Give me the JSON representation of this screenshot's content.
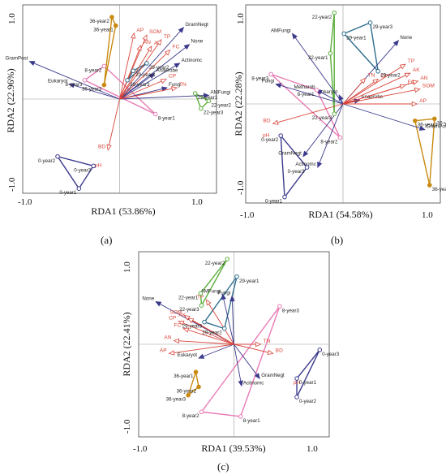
{
  "panel_letters": [
    "(a)",
    "(b)",
    "(c)"
  ],
  "colors": {
    "env": "#d9453a",
    "taxa": "#3b3a8c",
    "year0": "#3b3a8c",
    "year8": "#e87bb5",
    "year22": "#5aae3a",
    "year29": "#2e6e8e",
    "year36": "#c98a10"
  },
  "chart_data": [
    {
      "type": "scatter",
      "panel": "(a)",
      "xlabel": "RDA1 (53.86%)",
      "ylabel": "RDA2 (22.96%)",
      "xlim": [
        -1.0,
        1.0
      ],
      "ylim": [
        -1.0,
        1.0
      ],
      "xticks": [
        "-1.0",
        "1.0"
      ],
      "yticks": [
        "1.0",
        "-1.0"
      ],
      "env_arrows": [
        {
          "label": "AP",
          "x": 0.15,
          "y": 0.7
        },
        {
          "label": "SOM",
          "x": 0.28,
          "y": 0.68
        },
        {
          "label": "AN",
          "x": 0.22,
          "y": 0.57
        },
        {
          "label": "AK",
          "x": 0.33,
          "y": 0.56
        },
        {
          "label": "TP",
          "x": 0.43,
          "y": 0.63
        },
        {
          "label": "FC",
          "x": 0.52,
          "y": 0.52
        },
        {
          "label": "CP",
          "x": 0.48,
          "y": 0.21
        },
        {
          "label": "TN",
          "x": 0.59,
          "y": 0.12
        },
        {
          "label": "BD",
          "x": -0.12,
          "y": -0.54
        }
      ],
      "env_labels_no_arrow": [
        {
          "label": "pH",
          "x": -0.22,
          "y": -0.72
        }
      ],
      "taxa_arrows": [
        {
          "label": "GramNegt",
          "x": 0.66,
          "y": 0.76
        },
        {
          "label": "None",
          "x": 0.72,
          "y": 0.58
        },
        {
          "label": "Actinomc",
          "x": 0.62,
          "y": 0.38
        },
        {
          "label": "Anaerobe",
          "x": 0.36,
          "y": 0.27
        },
        {
          "label": "Fungi",
          "x": 0.49,
          "y": 0.12
        },
        {
          "label": "AMFungi",
          "x": 0.92,
          "y": 0.04
        },
        {
          "label": "Eukaryot",
          "x": -0.52,
          "y": 0.16
        },
        {
          "label": "GramPost",
          "x": -0.93,
          "y": 0.4
        }
      ],
      "samples": [
        {
          "label": "36-year1",
          "x": -0.04,
          "y": 0.78,
          "group": "36"
        },
        {
          "label": "36-year2",
          "x": -0.08,
          "y": 0.87,
          "group": "36"
        },
        {
          "label": "36-year3",
          "x": -0.16,
          "y": 0.15,
          "group": "36"
        },
        {
          "label": "29-year1",
          "x": 0.14,
          "y": 0.3,
          "group": "29"
        },
        {
          "label": "29-year2",
          "x": 0.28,
          "y": 0.38,
          "group": "29"
        },
        {
          "label": "29-year3",
          "x": 0.08,
          "y": 0.2,
          "group": "29"
        },
        {
          "label": "22-year1",
          "x": 0.78,
          "y": 0.06,
          "group": "22"
        },
        {
          "label": "22-year2",
          "x": 0.92,
          "y": -0.02,
          "group": "22"
        },
        {
          "label": "22-year3",
          "x": 0.84,
          "y": -0.1,
          "group": "22"
        },
        {
          "label": "8-year1",
          "x": 0.37,
          "y": -0.16,
          "group": "8"
        },
        {
          "label": "8-year2",
          "x": -0.16,
          "y": 0.35,
          "group": "8"
        },
        {
          "label": "8-year3",
          "x": -0.36,
          "y": 0.2,
          "group": "8"
        },
        {
          "label": "0-year1",
          "x": -0.42,
          "y": -0.95,
          "group": "0"
        },
        {
          "label": "0-year2",
          "x": -0.64,
          "y": -0.61,
          "group": "0"
        },
        {
          "label": "0-year3",
          "x": -0.27,
          "y": -0.71,
          "group": "0"
        }
      ]
    },
    {
      "type": "scatter",
      "panel": "(b)",
      "xlabel": "RDA1 (54.58%)",
      "ylabel": "RDA2 (22.28%)",
      "xlim": [
        -1.0,
        1.0
      ],
      "ylim": [
        -1.0,
        1.0
      ],
      "xticks": [
        "-1.0",
        "1.0"
      ],
      "yticks": [
        "1.0",
        "-1.0"
      ],
      "env_arrows": [
        {
          "label": "TP",
          "x": 0.64,
          "y": 0.4
        },
        {
          "label": "AK",
          "x": 0.69,
          "y": 0.31
        },
        {
          "label": "AN",
          "x": 0.77,
          "y": 0.23
        },
        {
          "label": "SOM",
          "x": 0.79,
          "y": 0.15
        },
        {
          "label": "FC",
          "x": 0.64,
          "y": 0.19
        },
        {
          "label": "CP",
          "x": 0.36,
          "y": 0.25
        },
        {
          "label": "TN",
          "x": 0.23,
          "y": 0.26
        },
        {
          "label": "AP",
          "x": 0.76,
          "y": 0.0
        },
        {
          "label": "BD",
          "x": -0.72,
          "y": -0.2
        }
      ],
      "env_labels_no_arrow": [
        {
          "label": "pH",
          "x": -0.79,
          "y": -0.33
        }
      ],
      "taxa_arrows": [
        {
          "label": "None",
          "x": 0.57,
          "y": 0.64
        },
        {
          "label": "Anaerobe",
          "x": 0.17,
          "y": 0.04
        },
        {
          "label": "Eukaryot",
          "x": -0.04,
          "y": 0.09
        },
        {
          "label": "Metharob",
          "x": -0.27,
          "y": 0.14
        },
        {
          "label": "Fungi",
          "x": -0.69,
          "y": 0.2
        },
        {
          "label": "AMFungi",
          "x": -0.52,
          "y": 0.71
        },
        {
          "label": "GramNegt",
          "x": -0.41,
          "y": -0.53
        },
        {
          "label": "Actinomc",
          "x": -0.26,
          "y": -0.64
        },
        {
          "label": "GramPost",
          "x": 0.84,
          "y": -0.26
        }
      ],
      "samples": [
        {
          "label": "22-year1",
          "x": -0.13,
          "y": 0.51,
          "group": "22"
        },
        {
          "label": "22-year2",
          "x": -0.09,
          "y": 0.92,
          "group": "22"
        },
        {
          "label": "22-year3",
          "x": -0.09,
          "y": -0.1,
          "group": "22"
        },
        {
          "label": "29-year1",
          "x": 0.01,
          "y": 0.71,
          "group": "29"
        },
        {
          "label": "29-year2",
          "x": 0.36,
          "y": 0.33,
          "group": "29"
        },
        {
          "label": "29-year3",
          "x": 0.28,
          "y": 0.82,
          "group": "29"
        },
        {
          "label": "8-year1",
          "x": -0.27,
          "y": 0.14,
          "group": "8"
        },
        {
          "label": "8-year2",
          "x": -0.03,
          "y": -0.34,
          "group": "8"
        },
        {
          "label": "8-year3",
          "x": -0.74,
          "y": 0.3,
          "group": "8"
        },
        {
          "label": "36-year1",
          "x": 0.89,
          "y": -0.82,
          "group": "36"
        },
        {
          "label": "36-year2",
          "x": 0.94,
          "y": -0.15,
          "group": "36"
        },
        {
          "label": "36-year3",
          "x": 0.74,
          "y": -0.17,
          "group": "36"
        },
        {
          "label": "0-year1",
          "x": -0.6,
          "y": -0.94,
          "group": "0"
        },
        {
          "label": "0-year2",
          "x": -0.64,
          "y": -0.32,
          "group": "0"
        },
        {
          "label": "0-year3",
          "x": -0.37,
          "y": -0.64,
          "group": "0"
        }
      ]
    },
    {
      "type": "scatter",
      "panel": "(c)",
      "xlabel": "RDA1 (39.53%)",
      "ylabel": "RDA2 (22.41%)",
      "xlim": [
        -1.0,
        1.0
      ],
      "ylim": [
        -1.0,
        1.0
      ],
      "xticks": [
        "-1.0",
        "1.0"
      ],
      "yticks": [
        "1.0",
        "-1.0"
      ],
      "env_arrows": [
        {
          "label": "TP",
          "x": -0.29,
          "y": 0.48
        },
        {
          "label": "SOM",
          "x": -0.52,
          "y": 0.31
        },
        {
          "label": "AK",
          "x": -0.48,
          "y": 0.28
        },
        {
          "label": "CP",
          "x": -0.58,
          "y": 0.25
        },
        {
          "label": "FC",
          "x": -0.53,
          "y": 0.17
        },
        {
          "label": "AN",
          "x": -0.63,
          "y": 0.04
        },
        {
          "label": "AP",
          "x": -0.68,
          "y": -0.1
        },
        {
          "label": "TN",
          "x": 0.28,
          "y": 0.0
        },
        {
          "label": "BD",
          "x": 0.41,
          "y": -0.1
        }
      ],
      "env_labels_no_arrow": [
        {
          "label": "pH",
          "x": 0.66,
          "y": -0.43
        }
      ],
      "taxa_arrows": [
        {
          "label": "None",
          "x": -0.82,
          "y": 0.46
        },
        {
          "label": "AMFungi",
          "x": -0.12,
          "y": 0.54
        },
        {
          "label": "Fungi",
          "x": -0.02,
          "y": 0.52
        },
        {
          "label": "Eukaryot",
          "x": -0.37,
          "y": -0.15
        },
        {
          "label": "Actinomc",
          "x": 0.08,
          "y": -0.45
        },
        {
          "label": "GramNegt",
          "x": 0.27,
          "y": -0.37
        }
      ],
      "samples": [
        {
          "label": "22-year1",
          "x": -0.35,
          "y": 0.55,
          "group": "22"
        },
        {
          "label": "22-year2",
          "x": -0.07,
          "y": 0.92,
          "group": "22"
        },
        {
          "label": "22-year3",
          "x": -0.34,
          "y": 0.42,
          "group": "22"
        },
        {
          "label": "29-year1",
          "x": 0.03,
          "y": 0.73,
          "group": "29"
        },
        {
          "label": "29-year2",
          "x": -0.1,
          "y": 0.17,
          "group": "29"
        },
        {
          "label": "29-year3",
          "x": -0.31,
          "y": 0.24,
          "group": "29"
        },
        {
          "label": "8-year1",
          "x": 0.07,
          "y": -0.78,
          "group": "8"
        },
        {
          "label": "8-year2",
          "x": -0.34,
          "y": -0.73,
          "group": "8"
        },
        {
          "label": "8-year3",
          "x": 0.48,
          "y": 0.41,
          "group": "8"
        },
        {
          "label": "36-year1",
          "x": -0.4,
          "y": -0.3,
          "group": "36"
        },
        {
          "label": "36-year2",
          "x": -0.37,
          "y": -0.46,
          "group": "36"
        },
        {
          "label": "36-year3",
          "x": -0.48,
          "y": -0.55,
          "group": "36"
        },
        {
          "label": "0-year1",
          "x": 0.66,
          "y": -0.37,
          "group": "0"
        },
        {
          "label": "0-year2",
          "x": 0.66,
          "y": -0.57,
          "group": "0"
        },
        {
          "label": "0-year3",
          "x": 0.9,
          "y": -0.06,
          "group": "0"
        }
      ]
    }
  ]
}
